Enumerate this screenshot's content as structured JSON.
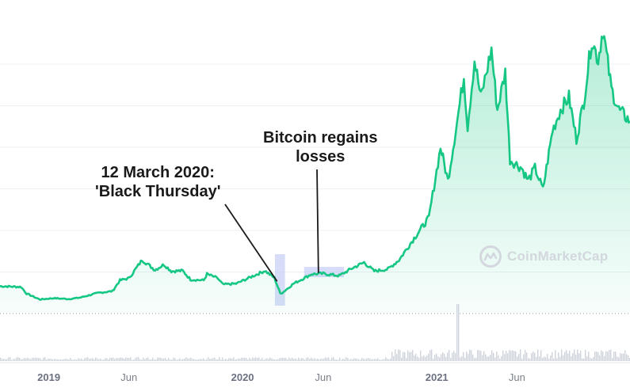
{
  "chart_data": {
    "type": "area",
    "title": "",
    "xlabel": "",
    "ylabel": "",
    "x_range": [
      "2018-10-01",
      "2021-12-31"
    ],
    "y_range": [
      0,
      72000
    ],
    "grid": true,
    "line_color": "#16c784",
    "volume_color": "#cfd3dc",
    "highlight_color": "#c9d2f5",
    "x_ticks": [
      {
        "label": "2019",
        "date": "2019-01-01",
        "major": true
      },
      {
        "label": "Jun",
        "date": "2019-06-01",
        "major": false
      },
      {
        "label": "2020",
        "date": "2020-01-01",
        "major": true
      },
      {
        "label": "Jun",
        "date": "2020-06-01",
        "major": false
      },
      {
        "label": "2021",
        "date": "2021-01-01",
        "major": true
      },
      {
        "label": "Jun",
        "date": "2021-06-01",
        "major": false
      }
    ],
    "series": [
      {
        "values": [
          [
            "2018-10-01",
            6600
          ],
          [
            "2018-11-10",
            6400
          ],
          [
            "2018-11-20",
            4800
          ],
          [
            "2018-12-15",
            3400
          ],
          [
            "2019-01-10",
            3700
          ],
          [
            "2019-02-08",
            3500
          ],
          [
            "2019-03-01",
            3850
          ],
          [
            "2019-04-05",
            5000
          ],
          [
            "2019-05-01",
            5400
          ],
          [
            "2019-05-15",
            8000
          ],
          [
            "2019-06-01",
            8500
          ],
          [
            "2019-06-26",
            12900
          ],
          [
            "2019-07-10",
            11500
          ],
          [
            "2019-07-20",
            10500
          ],
          [
            "2019-08-06",
            11800
          ],
          [
            "2019-08-20",
            10200
          ],
          [
            "2019-09-10",
            10300
          ],
          [
            "2019-09-25",
            8200
          ],
          [
            "2019-10-20",
            8000
          ],
          [
            "2019-10-26",
            9500
          ],
          [
            "2019-11-15",
            8500
          ],
          [
            "2019-11-25",
            7000
          ],
          [
            "2019-12-20",
            7200
          ],
          [
            "2020-01-15",
            8700
          ],
          [
            "2020-02-12",
            10300
          ],
          [
            "2020-03-01",
            8600
          ],
          [
            "2020-03-12",
            4900
          ],
          [
            "2020-03-16",
            5000
          ],
          [
            "2020-04-06",
            7200
          ],
          [
            "2020-04-30",
            8800
          ],
          [
            "2020-05-10",
            9500
          ],
          [
            "2020-06-01",
            9600
          ],
          [
            "2020-07-01",
            9100
          ],
          [
            "2020-07-27",
            11000
          ],
          [
            "2020-08-17",
            12300
          ],
          [
            "2020-09-05",
            10200
          ],
          [
            "2020-10-01",
            10700
          ],
          [
            "2020-10-22",
            12900
          ],
          [
            "2020-11-05",
            15500
          ],
          [
            "2020-11-24",
            19000
          ],
          [
            "2020-12-17",
            23000
          ],
          [
            "2021-01-08",
            40000
          ],
          [
            "2021-01-22",
            32000
          ],
          [
            "2021-02-08",
            46000
          ],
          [
            "2021-02-21",
            57000
          ],
          [
            "2021-02-28",
            45000
          ],
          [
            "2021-03-13",
            61000
          ],
          [
            "2021-03-25",
            52000
          ],
          [
            "2021-04-14",
            63500
          ],
          [
            "2021-04-25",
            49000
          ],
          [
            "2021-05-10",
            58000
          ],
          [
            "2021-05-19",
            37000
          ],
          [
            "2021-06-10",
            35000
          ],
          [
            "2021-06-22",
            32000
          ],
          [
            "2021-07-05",
            35000
          ],
          [
            "2021-07-20",
            29800
          ],
          [
            "2021-08-07",
            44000
          ],
          [
            "2021-08-22",
            49000
          ],
          [
            "2021-09-07",
            52000
          ],
          [
            "2021-09-21",
            42000
          ],
          [
            "2021-10-05",
            51000
          ],
          [
            "2021-10-20",
            66000
          ],
          [
            "2021-11-01",
            61000
          ],
          [
            "2021-11-10",
            68500
          ],
          [
            "2021-11-26",
            54000
          ],
          [
            "2021-12-10",
            49000
          ],
          [
            "2021-12-31",
            46300
          ]
        ]
      }
    ],
    "annotations": [
      {
        "text_lines": [
          "12 March 2020:",
          "'Black Thursday'"
        ],
        "date": "2020-03-12",
        "value": 4900
      },
      {
        "text_lines": [
          "Bitcoin regains",
          "losses"
        ],
        "date": "2020-05-20",
        "value": 9200
      }
    ],
    "highlight_ranges": [
      {
        "start": "2020-03-02",
        "end": "2020-03-21"
      },
      {
        "start": "2020-04-26",
        "end": "2020-07-10"
      }
    ]
  },
  "annotations_text": {
    "black_thursday_line1": "12 March 2020:",
    "black_thursday_line2": "'Black Thursday'",
    "regains_line1": "Bitcoin regains",
    "regains_line2": "losses"
  },
  "watermark": {
    "text": "CoinMarketCap",
    "color": "#d3d7de"
  }
}
